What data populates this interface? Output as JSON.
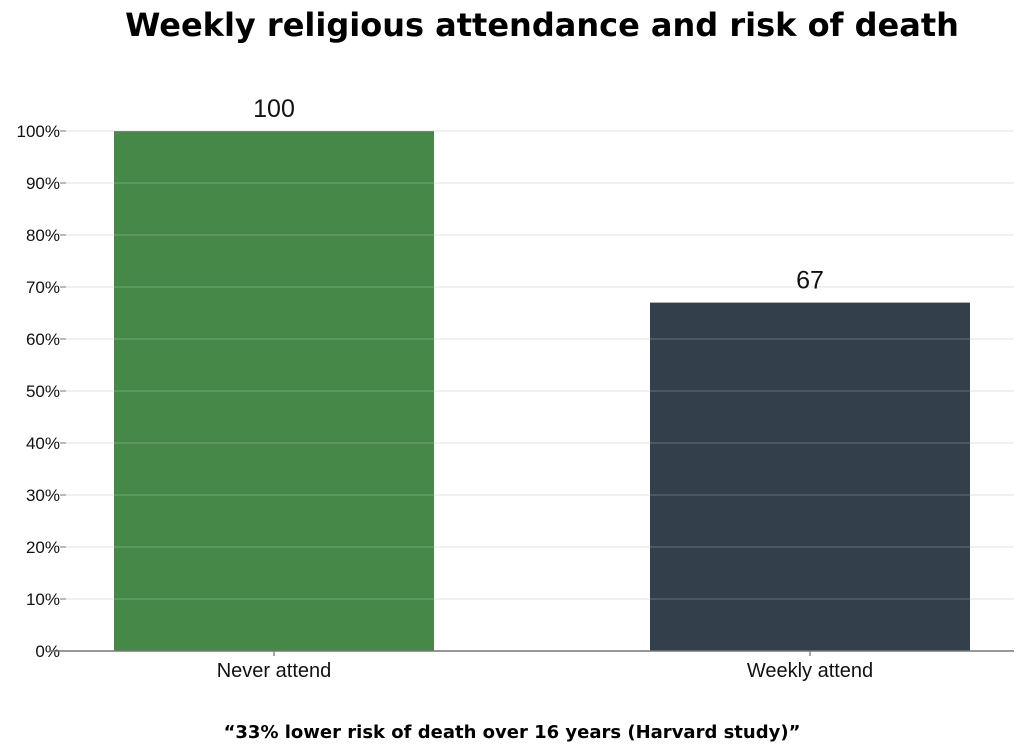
{
  "chart_data": {
    "type": "bar",
    "title": "Weekly religious attendance and risk of death",
    "categories": [
      "Never attend",
      "Weekly attend"
    ],
    "values": [
      100,
      67
    ],
    "data_labels": [
      "100",
      "67"
    ],
    "colors": [
      "#468847",
      "#333f4a"
    ],
    "xlabel": "",
    "ylabel": "",
    "ylim": [
      0,
      100
    ],
    "y_ticks": [
      "0%",
      "10%",
      "20%",
      "30%",
      "40%",
      "50%",
      "60%",
      "70%",
      "80%",
      "90%",
      "100%"
    ],
    "grid": true,
    "footnote": "“33% lower risk of death over 16 years (Harvard study)”"
  }
}
